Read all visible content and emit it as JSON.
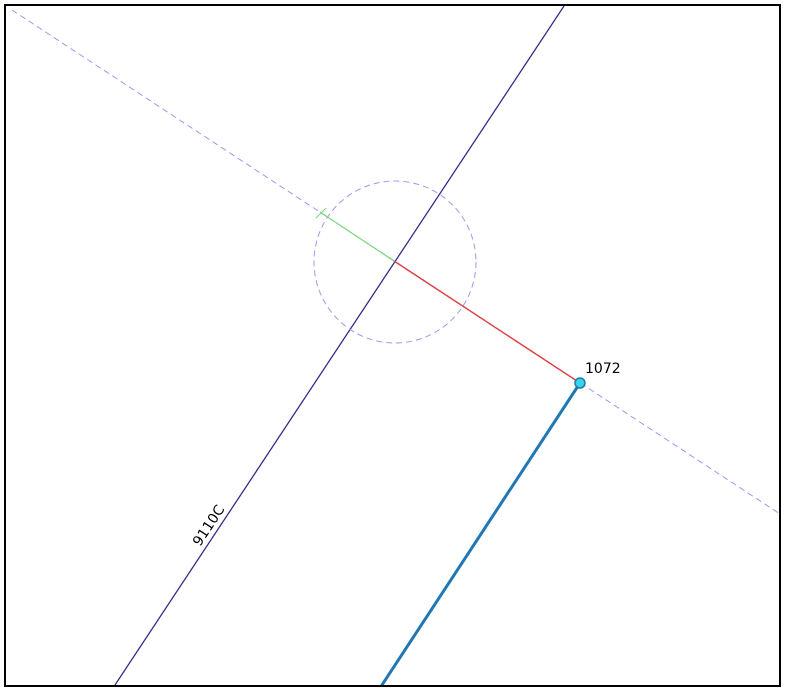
{
  "canvas": {
    "background": "#ffffff",
    "frame_color": "#000000"
  },
  "features": {
    "main_line": {
      "label": "9110C",
      "color": "#3a2a8c"
    },
    "blue_segment": {
      "color": "#1f78b4"
    },
    "guide_line": {
      "color": "#9a9aee",
      "style": "dashed"
    },
    "snap_circle": {
      "color": "#9a9aee",
      "style": "dashed"
    },
    "red_segment": {
      "color": "#e04040"
    },
    "green_segment": {
      "color": "#7ad87a"
    },
    "vertex": {
      "label": "1072",
      "fill": "#35d4e6",
      "stroke": "#1f78b4"
    }
  }
}
